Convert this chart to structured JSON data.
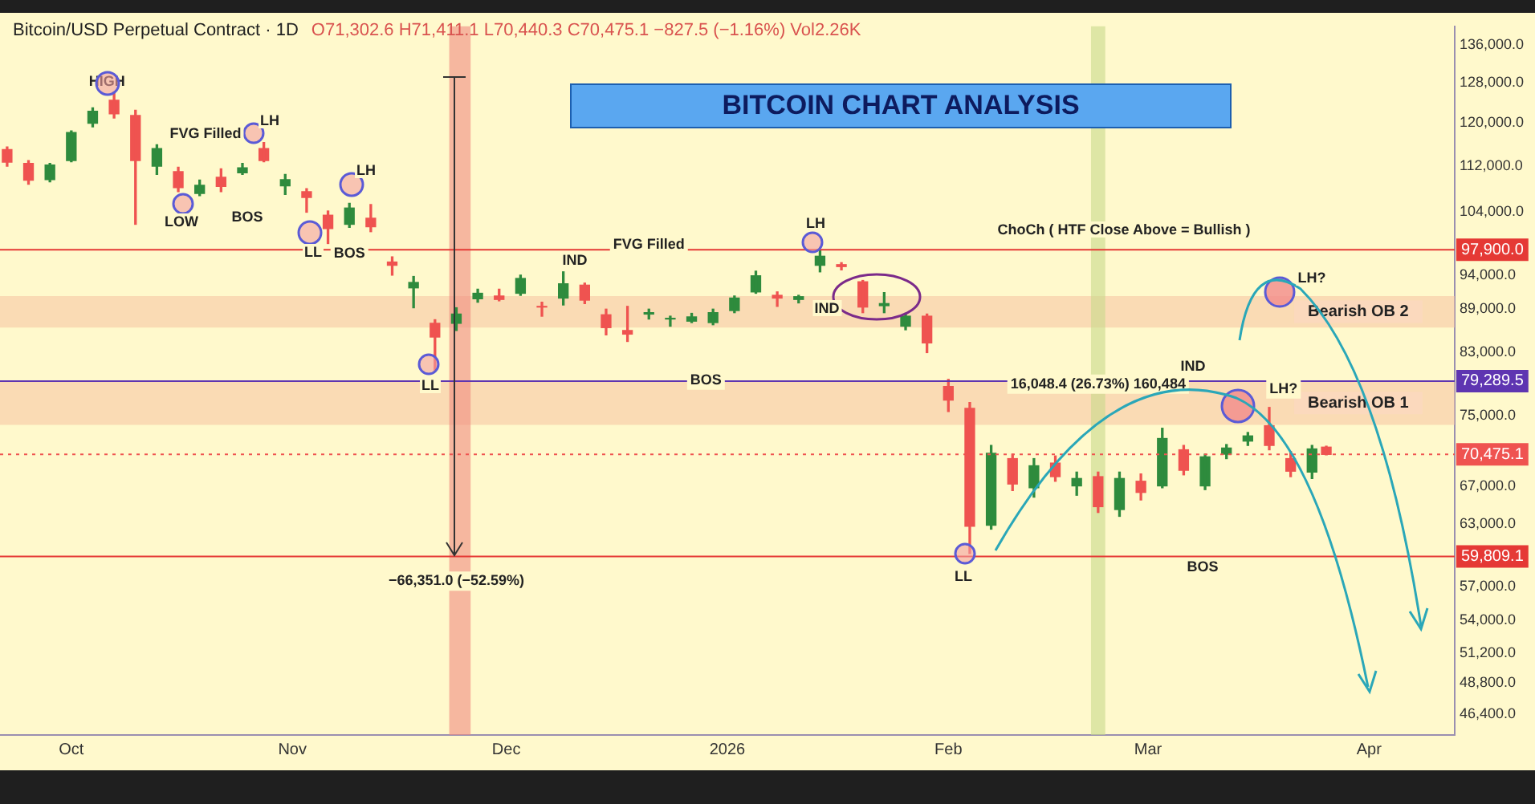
{
  "chart_data": {
    "type": "candlestick",
    "title": "BITCOIN CHART ANALYSIS",
    "subtitle": "Bitcoin/USD Perpetual Contract · 1D",
    "x": [
      "2025-09-22",
      "2025-09-25",
      "2025-09-28",
      "2025-10-01",
      "2025-10-04",
      "2025-10-07",
      "2025-10-10",
      "2025-10-13",
      "2025-10-16",
      "2025-10-19",
      "2025-10-22",
      "2025-10-25",
      "2025-10-28",
      "2025-10-31",
      "2025-11-03",
      "2025-11-06",
      "2025-11-09",
      "2025-11-12",
      "2025-11-15",
      "2025-11-18",
      "2025-11-21",
      "2025-11-24",
      "2025-11-27",
      "2025-11-30",
      "2025-12-03",
      "2025-12-06",
      "2025-12-09",
      "2025-12-12",
      "2025-12-15",
      "2025-12-18",
      "2025-12-21",
      "2025-12-24",
      "2025-12-27",
      "2025-12-30",
      "2026-01-02",
      "2026-01-05",
      "2026-01-08",
      "2026-01-11",
      "2026-01-14",
      "2026-01-17",
      "2026-01-20",
      "2026-01-23",
      "2026-01-26",
      "2026-01-29",
      "2026-02-01",
      "2026-02-04",
      "2026-02-07",
      "2026-02-10",
      "2026-02-13",
      "2026-02-16",
      "2026-02-19",
      "2026-02-22",
      "2026-02-25",
      "2026-02-28",
      "2026-03-03",
      "2026-03-06",
      "2026-03-09",
      "2026-03-12",
      "2026-03-15",
      "2026-03-18",
      "2026-03-21",
      "2026-03-24",
      "2026-03-26"
    ],
    "ohlc": [
      [
        115000,
        115500,
        112000,
        112700
      ],
      [
        112500,
        113000,
        108800,
        109500
      ],
      [
        109600,
        112500,
        109200,
        112200
      ],
      [
        113000,
        118500,
        112800,
        118200
      ],
      [
        120000,
        123000,
        119300,
        122300
      ],
      [
        124500,
        126200,
        121000,
        121800
      ],
      [
        121500,
        122500,
        102000,
        113000
      ],
      [
        112000,
        115900,
        110500,
        115200
      ],
      [
        111000,
        111800,
        107500,
        108200
      ],
      [
        107200,
        109500,
        106800,
        108600
      ],
      [
        110000,
        111500,
        107500,
        108400
      ],
      [
        110800,
        112500,
        110500,
        111700
      ],
      [
        115200,
        116300,
        112800,
        113000
      ],
      [
        108500,
        110500,
        107000,
        109600
      ],
      [
        107500,
        108000,
        104000,
        106500
      ],
      [
        103500,
        104200,
        98900,
        101300
      ],
      [
        102000,
        105500,
        101500,
        104700
      ],
      [
        103000,
        105300,
        100800,
        101600
      ],
      [
        96000,
        96800,
        94000,
        95500
      ],
      [
        92100,
        93800,
        89200,
        92900
      ],
      [
        87000,
        87500,
        80600,
        85100
      ],
      [
        87000,
        89200,
        86000,
        88300
      ],
      [
        90500,
        91900,
        90000,
        91300
      ],
      [
        90900,
        91900,
        90200,
        90400
      ],
      [
        91300,
        94000,
        91000,
        93500
      ],
      [
        89400,
        90000,
        88000,
        89300
      ],
      [
        90600,
        94500,
        89600,
        92700
      ],
      [
        92500,
        92800,
        89800,
        90300
      ],
      [
        88200,
        89000,
        85400,
        86400
      ],
      [
        86000,
        89400,
        84500,
        85500
      ],
      [
        88300,
        89000,
        87600,
        88500
      ],
      [
        87600,
        88000,
        86600,
        87700
      ],
      [
        87300,
        88400,
        87100,
        87900
      ],
      [
        87100,
        89000,
        86800,
        88500
      ],
      [
        88800,
        90900,
        88500,
        90600
      ],
      [
        91500,
        94600,
        91300,
        93900
      ],
      [
        91000,
        91500,
        89400,
        90600
      ],
      [
        90400,
        91000,
        89900,
        90800
      ],
      [
        95500,
        97900,
        94500,
        96900
      ],
      [
        95600,
        95900,
        94800,
        95300
      ],
      [
        93000,
        93200,
        88500,
        89300
      ],
      [
        89500,
        91400,
        88500,
        89800
      ],
      [
        86600,
        88400,
        86100,
        88000
      ],
      [
        88000,
        88300,
        83000,
        84300
      ],
      [
        78600,
        79500,
        75500,
        76900
      ],
      [
        75900,
        76600,
        60100,
        62800
      ],
      [
        62900,
        71500,
        62500,
        70600
      ],
      [
        70000,
        70500,
        66500,
        67200
      ],
      [
        66800,
        70000,
        65800,
        69200
      ],
      [
        69500,
        70300,
        67500,
        68000
      ],
      [
        67000,
        68500,
        66000,
        67800
      ],
      [
        68000,
        68500,
        64200,
        64800
      ],
      [
        64500,
        68500,
        63800,
        67800
      ],
      [
        67500,
        68300,
        65500,
        66300
      ],
      [
        67000,
        73500,
        66800,
        72300
      ],
      [
        71000,
        71500,
        68200,
        68700
      ],
      [
        67000,
        70500,
        66600,
        70200
      ],
      [
        70500,
        71600,
        70000,
        71200
      ],
      [
        72000,
        73000,
        71500,
        72600
      ],
      [
        73800,
        76000,
        71000,
        71500
      ],
      [
        70000,
        70800,
        68000,
        68600
      ],
      [
        68500,
        71500,
        67800,
        71100
      ],
      [
        71302.6,
        71411.1,
        70440.3,
        70475.1
      ]
    ],
    "colors": [
      "#ef5350",
      "#ef5350",
      "#2e8b3d",
      "#2e8b3d",
      "#2e8b3d",
      "#ef5350",
      "#ef5350",
      "#2e8b3d",
      "#ef5350",
      "#2e8b3d",
      "#ef5350",
      "#2e8b3d",
      "#ef5350",
      "#2e8b3d",
      "#ef5350",
      "#ef5350",
      "#2e8b3d",
      "#ef5350",
      "#ef5350",
      "#2e8b3d",
      "#ef5350",
      "#2e8b3d",
      "#2e8b3d",
      "#ef5350",
      "#2e8b3d",
      "#ef5350",
      "#2e8b3d",
      "#ef5350",
      "#ef5350",
      "#ef5350",
      "#2e8b3d",
      "#2e8b3d",
      "#2e8b3d",
      "#2e8b3d",
      "#2e8b3d",
      "#2e8b3d",
      "#ef5350",
      "#2e8b3d",
      "#2e8b3d",
      "#ef5350",
      "#ef5350",
      "#2e8b3d",
      "#2e8b3d",
      "#ef5350",
      "#ef5350",
      "#ef5350",
      "#2e8b3d",
      "#ef5350",
      "#2e8b3d",
      "#ef5350",
      "#2e8b3d",
      "#ef5350",
      "#2e8b3d",
      "#ef5350",
      "#2e8b3d",
      "#ef5350",
      "#2e8b3d",
      "#2e8b3d",
      "#2e8b3d",
      "#ef5350",
      "#ef5350",
      "#2e8b3d",
      "#ef5350"
    ],
    "log": "y",
    "xlim": [
      "2025-09-21",
      "2026-04-13"
    ],
    "xticks": [
      {
        "value": "2025-10-01",
        "label": "Oct"
      },
      {
        "value": "2025-11-01",
        "label": "Nov"
      },
      {
        "value": "2025-12-01",
        "label": "Dec"
      },
      {
        "value": "2026-01-01",
        "label": "2026"
      },
      {
        "value": "2026-02-01",
        "label": "Feb"
      },
      {
        "value": "2026-03-01",
        "label": "Mar"
      },
      {
        "value": "2026-04-01",
        "label": "Apr"
      }
    ],
    "ylim": [
      44900,
      140200
    ],
    "yticks": [
      {
        "value": 136000,
        "label": "136,000.0"
      },
      {
        "value": 128000,
        "label": "128,000.0"
      },
      {
        "value": 120000,
        "label": "120,000.0"
      },
      {
        "value": 112000,
        "label": "112,000.0"
      },
      {
        "value": 104000,
        "label": "104,000.0"
      },
      {
        "value": 94000,
        "label": "94,000.0"
      },
      {
        "value": 89000,
        "label": "89,000.0"
      },
      {
        "value": 83000,
        "label": "83,000.0"
      },
      {
        "value": 75000,
        "label": "75,000.0"
      },
      {
        "value": 67000,
        "label": "67,000.0"
      },
      {
        "value": 63000,
        "label": "63,000.0"
      },
      {
        "value": 57000,
        "label": "57,000.0"
      },
      {
        "value": 54000,
        "label": "54,000.0"
      },
      {
        "value": 51200,
        "label": "51,200.0"
      },
      {
        "value": 48800,
        "label": "48,800.0"
      },
      {
        "value": 46400,
        "label": "46,400.0"
      }
    ],
    "grid": false,
    "legend": false,
    "ref_lines": [
      {
        "axis": "y",
        "value": 97900,
        "label": "97,900.0",
        "color": "#e53935"
      },
      {
        "axis": "y",
        "value": 79289.5,
        "label": "79,289.5",
        "color": "#5e35b1"
      },
      {
        "axis": "y",
        "value": 70475.1,
        "label": "70,475.1",
        "color": "#ef5350",
        "line_style": "dotted"
      },
      {
        "axis": "y",
        "value": 59809.1,
        "label": "59,809.1",
        "color": "#e53935"
      }
    ],
    "bands": [
      {
        "axis": "y",
        "from": 86400,
        "to": 90900,
        "label": "Bearish OB 2",
        "color": "#f7c6a3"
      },
      {
        "axis": "y",
        "from": 73900,
        "to": 79289.5,
        "label": "Bearish OB 1",
        "color": "#f7c6a3"
      },
      {
        "axis": "x",
        "from": "2025-11-23",
        "to": "2025-11-26",
        "color": "#f08a80"
      },
      {
        "axis": "x",
        "from": "2026-02-21",
        "to": "2026-02-23",
        "color": "#c8d98a"
      }
    ],
    "annotations": [
      "O71,302.6  H71,411.1  L70,440.3  C70,475.1  −827.5 (−1.16%)  Vol2.26K",
      {
        "text": "HIGH",
        "x": "2025-10-06",
        "y": 128300
      },
      "FVG Filled",
      "LH",
      "LOW",
      "BOS",
      "LL",
      {
        "text": "BOS",
        "x": "2025-11-09",
        "y": 97300
      },
      "LH",
      "LL",
      "IND",
      {
        "text": "FVG Filled",
        "x": "2025-12-21",
        "y": 98700
      },
      {
        "text": "BOS",
        "x": "2025-12-29",
        "y": 79400
      },
      "LH",
      "IND",
      "LL",
      "ChoCh ( HTF Close Above = Bullish )",
      {
        "text": "16,048.4 (26.73%) 160,484",
        "x": "2026-02-22",
        "y": 78900
      },
      "IND",
      "BOS",
      {
        "text": "LH?",
        "x": "2026-03-20",
        "y": 78300
      },
      "LH?",
      {
        "text": "−66,351.0 (−52.59%)",
        "x": "2025-11-24",
        "y": 57500
      }
    ]
  }
}
